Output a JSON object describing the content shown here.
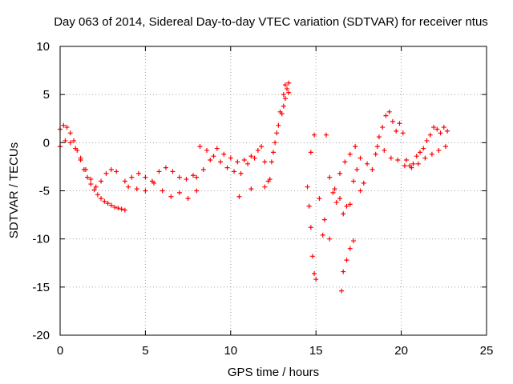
{
  "chart_data": {
    "type": "scatter",
    "title": "Day 063 of 2014, Sidereal Day-to-day VTEC variation (SDTVAR) for receiver ntus",
    "xlabel": "GPS time / hours",
    "ylabel": "SDTVAR / TECUs",
    "xlim": [
      0,
      25
    ],
    "ylim": [
      -20,
      10
    ],
    "xticks": [
      0,
      5,
      10,
      15,
      20,
      25
    ],
    "yticks": [
      -20,
      -15,
      -10,
      -5,
      0,
      5,
      10
    ],
    "xtick_labels": [
      "0",
      "5",
      "10",
      "15",
      "20",
      "25"
    ],
    "ytick_labels": [
      "-20",
      "-15",
      "-10",
      "-5",
      "0",
      "5",
      "10"
    ],
    "grid": true,
    "marker": "+",
    "color": "#ff0000",
    "series": [
      {
        "name": "SDTVAR",
        "x": [
          0.0,
          0.2,
          0.4,
          0.6,
          0.8,
          1.0,
          1.2,
          1.4,
          1.6,
          1.8,
          2.0,
          2.2,
          2.4,
          2.6,
          2.8,
          3.0,
          3.2,
          3.4,
          3.6,
          3.8,
          0.0,
          0.3,
          0.6,
          0.9,
          1.2,
          1.5,
          1.8,
          2.1,
          2.4,
          2.7,
          3.0,
          3.3,
          3.8,
          4.2,
          4.6,
          5.0,
          5.4,
          5.8,
          6.2,
          6.6,
          7.0,
          7.4,
          7.8,
          4.0,
          4.5,
          5.0,
          5.5,
          6.0,
          6.5,
          7.0,
          7.5,
          8.0,
          8.0,
          8.4,
          8.8,
          9.2,
          9.6,
          10.0,
          10.4,
          10.8,
          11.2,
          11.6,
          12.0,
          8.2,
          8.6,
          9.0,
          9.4,
          9.8,
          10.2,
          10.6,
          11.0,
          11.4,
          11.8,
          10.5,
          11.2,
          12.0,
          12.2,
          12.4,
          12.6,
          12.8,
          13.0,
          13.1,
          13.2,
          13.3,
          13.4,
          12.3,
          12.5,
          12.7,
          12.9,
          13.1,
          13.2,
          13.4,
          14.5,
          14.6,
          14.7,
          14.8,
          14.9,
          15.0,
          14.7,
          14.9,
          15.2,
          15.4,
          15.6,
          15.8,
          16.0,
          16.2,
          16.4,
          16.6,
          16.8,
          17.0,
          17.2,
          17.4,
          17.6,
          17.8,
          18.0,
          15.5,
          15.8,
          16.1,
          16.4,
          16.7,
          17.0,
          17.3,
          17.6,
          16.5,
          16.6,
          16.8,
          17.0,
          17.2,
          18.3,
          18.5,
          18.7,
          18.9,
          19.1,
          19.3,
          19.5,
          19.7,
          19.9,
          20.1,
          20.3,
          20.5,
          20.7,
          20.9,
          21.1,
          21.3,
          21.5,
          21.7,
          21.9,
          22.1,
          22.3,
          22.5,
          22.7,
          18.6,
          19.0,
          19.4,
          19.8,
          20.2,
          20.6,
          21.0,
          21.4,
          21.8,
          22.2,
          22.6
        ],
        "y": [
          1.4,
          1.8,
          1.6,
          1.0,
          0.2,
          -0.8,
          -1.8,
          -2.8,
          -3.6,
          -4.3,
          -4.9,
          -5.4,
          -5.8,
          -6.1,
          -6.3,
          -6.5,
          -6.7,
          -6.8,
          -6.9,
          -7.0,
          -0.4,
          0.2,
          0.0,
          -0.6,
          -1.6,
          -2.8,
          -3.8,
          -4.6,
          -4.0,
          -3.2,
          -2.8,
          -3.0,
          -4.0,
          -3.6,
          -3.2,
          -3.6,
          -4.0,
          -3.0,
          -2.6,
          -3.0,
          -3.6,
          -3.8,
          -3.4,
          -4.6,
          -4.8,
          -5.0,
          -4.2,
          -5.0,
          -5.6,
          -5.2,
          -5.8,
          -5.0,
          -3.6,
          -2.8,
          -1.8,
          -0.6,
          -1.2,
          -1.6,
          -2.0,
          -1.8,
          -1.4,
          -0.8,
          -2.0,
          -0.4,
          -0.8,
          -1.4,
          -2.0,
          -2.6,
          -3.0,
          -3.2,
          -2.2,
          -1.6,
          -0.4,
          -5.6,
          -4.8,
          -4.6,
          -4.0,
          -2.0,
          0.0,
          1.8,
          3.0,
          3.8,
          4.6,
          5.6,
          6.2,
          -3.8,
          -1.0,
          1.0,
          3.2,
          5.0,
          6.0,
          5.2,
          -4.6,
          -6.6,
          -8.8,
          -11.8,
          -13.6,
          -14.2,
          -1.0,
          0.8,
          -5.8,
          -9.6,
          0.8,
          -3.6,
          -5.2,
          -6.2,
          -5.8,
          -7.4,
          -6.6,
          -6.4,
          -4.0,
          -2.8,
          -5.0,
          -4.2,
          -2.2,
          -8.0,
          -10.0,
          -4.8,
          -3.2,
          -2.0,
          -1.2,
          -0.4,
          -1.6,
          -15.4,
          -13.4,
          -12.2,
          -11.0,
          -10.2,
          -2.8,
          -1.2,
          0.6,
          1.6,
          2.8,
          3.2,
          2.2,
          1.2,
          2.0,
          1.0,
          -1.8,
          -2.4,
          -2.2,
          -1.4,
          -1.0,
          -0.6,
          0.2,
          0.8,
          1.6,
          1.4,
          1.0,
          1.6,
          1.2,
          -0.4,
          -0.8,
          -1.6,
          -1.8,
          -2.4,
          -2.6,
          -2.2,
          -1.6,
          -1.2,
          -0.8,
          -0.4
        ]
      }
    ]
  }
}
